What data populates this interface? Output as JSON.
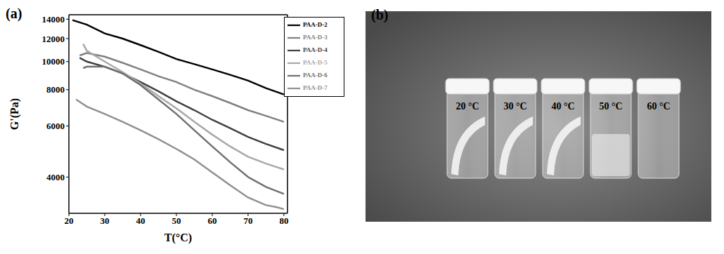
{
  "panel_labels": [
    "(a)",
    "(b)"
  ],
  "chart_data": {
    "type": "line",
    "x_label": "T(°C)",
    "y_label": "G'(Pa)",
    "xlim": [
      20,
      81
    ],
    "xticks": [
      20,
      30,
      40,
      50,
      60,
      70,
      80
    ],
    "ylim": [
      3000,
      14500
    ],
    "yticks": [
      4000,
      6000,
      8000,
      10000,
      12000,
      14000
    ],
    "log": "y",
    "legend": "upper right",
    "series": [
      {
        "name": "PAA-D-2",
        "color": "#000000",
        "x": [
          21,
          25,
          30,
          35,
          40,
          45,
          50,
          55,
          60,
          65,
          70,
          75,
          80
        ],
        "values": [
          13900,
          13400,
          12500,
          12000,
          11400,
          10800,
          10200,
          9800,
          9400,
          9000,
          8600,
          8100,
          7700
        ]
      },
      {
        "name": "PAA-D-3",
        "color": "#808080",
        "x": [
          23,
          25,
          30,
          35,
          40,
          45,
          50,
          55,
          60,
          65,
          70,
          75,
          80
        ],
        "values": [
          10500,
          10700,
          10400,
          9900,
          9400,
          8900,
          8500,
          8000,
          7600,
          7200,
          6800,
          6500,
          6200
        ]
      },
      {
        "name": "PAA-D-4",
        "color": "#404040",
        "x": [
          23,
          25,
          30,
          35,
          40,
          45,
          50,
          55,
          60,
          65,
          70,
          75,
          80
        ],
        "values": [
          10300,
          10000,
          9600,
          9100,
          8500,
          7900,
          7300,
          6800,
          6300,
          5900,
          5500,
          5200,
          4950
        ]
      },
      {
        "name": "PAA-D-5",
        "color": "#a8a8a8",
        "x": [
          24,
          25,
          30,
          35,
          40,
          45,
          50,
          55,
          60,
          65,
          70,
          75,
          80
        ],
        "values": [
          11500,
          10900,
          10000,
          9200,
          8400,
          7600,
          6900,
          6200,
          5600,
          5100,
          4700,
          4450,
          4250
        ]
      },
      {
        "name": "PAA-D-6",
        "color": "#707070",
        "x": [
          24,
          25,
          30,
          35,
          40,
          45,
          50,
          55,
          60,
          65,
          70,
          75,
          80
        ],
        "values": [
          9500,
          9600,
          9600,
          9100,
          8300,
          7400,
          6600,
          5800,
          5100,
          4500,
          4000,
          3700,
          3500
        ]
      },
      {
        "name": "PAA-D-7",
        "color": "#909090",
        "x": [
          22,
          25,
          30,
          35,
          40,
          45,
          50,
          55,
          60,
          65,
          70,
          75,
          78,
          80
        ],
        "values": [
          7400,
          7000,
          6600,
          6200,
          5800,
          5400,
          5000,
          4600,
          4150,
          3750,
          3400,
          3200,
          3150,
          3100
        ]
      }
    ]
  },
  "photo": {
    "labels": [
      "20 °C",
      "30 °C",
      "40 °C",
      "50 °C",
      "60 °C"
    ]
  }
}
